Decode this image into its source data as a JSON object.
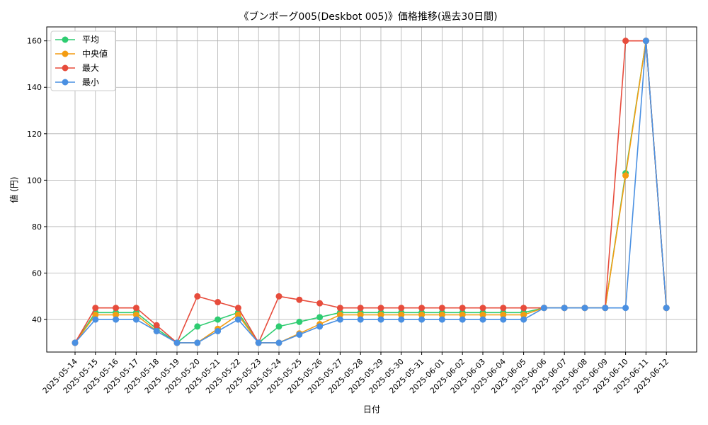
{
  "chart_data": {
    "type": "line",
    "title": "《ブンボーグ005(Deskbot 005)》価格推移(過去30日間)",
    "xlabel": "日付",
    "ylabel": "値 (円)",
    "ylim": [
      26,
      166
    ],
    "yticks": [
      40,
      60,
      80,
      100,
      120,
      140,
      160
    ],
    "grid": true,
    "legend_position": "top-left",
    "categories": [
      "2025-05-14",
      "2025-05-15",
      "2025-05-16",
      "2025-05-17",
      "2025-05-18",
      "2025-05-19",
      "2025-05-20",
      "2025-05-21",
      "2025-05-22",
      "2025-05-23",
      "2025-05-24",
      "2025-05-25",
      "2025-05-26",
      "2025-05-27",
      "2025-05-28",
      "2025-05-29",
      "2025-05-30",
      "2025-05-31",
      "2025-06-01",
      "2025-06-02",
      "2025-06-03",
      "2025-06-04",
      "2025-06-05",
      "2025-06-06",
      "2025-06-07",
      "2025-06-08",
      "2025-06-09",
      "2025-06-10",
      "2025-06-11",
      "2025-06-12"
    ],
    "series": [
      {
        "name": "平均",
        "color": "#2ecc71",
        "values": [
          30,
          43,
          43,
          43,
          36,
          30,
          37,
          40,
          43,
          30,
          37,
          39,
          41,
          43,
          43,
          43,
          43,
          43,
          43,
          43,
          43,
          43,
          43,
          45,
          45,
          45,
          45,
          103,
          160,
          45
        ]
      },
      {
        "name": "中央値",
        "color": "#f39c12",
        "values": [
          30,
          42,
          42,
          42,
          35,
          30,
          30,
          36,
          42,
          30,
          30,
          34,
          38,
          42,
          42,
          42,
          42,
          42,
          42,
          42,
          42,
          42,
          42,
          45,
          45,
          45,
          45,
          102,
          160,
          45
        ]
      },
      {
        "name": "最大",
        "color": "#e74c3c",
        "values": [
          30,
          45,
          45,
          45,
          37.5,
          30,
          50,
          47.5,
          45,
          30,
          50,
          48.5,
          47,
          45,
          45,
          45,
          45,
          45,
          45,
          45,
          45,
          45,
          45,
          45,
          45,
          45,
          45,
          160,
          160,
          45
        ]
      },
      {
        "name": "最小",
        "color": "#4a90e2",
        "values": [
          30,
          40,
          40,
          40,
          35,
          30,
          30,
          35,
          40,
          30,
          30,
          33.5,
          37,
          40,
          40,
          40,
          40,
          40,
          40,
          40,
          40,
          40,
          40,
          45,
          45,
          45,
          45,
          45,
          160,
          45
        ]
      }
    ]
  }
}
